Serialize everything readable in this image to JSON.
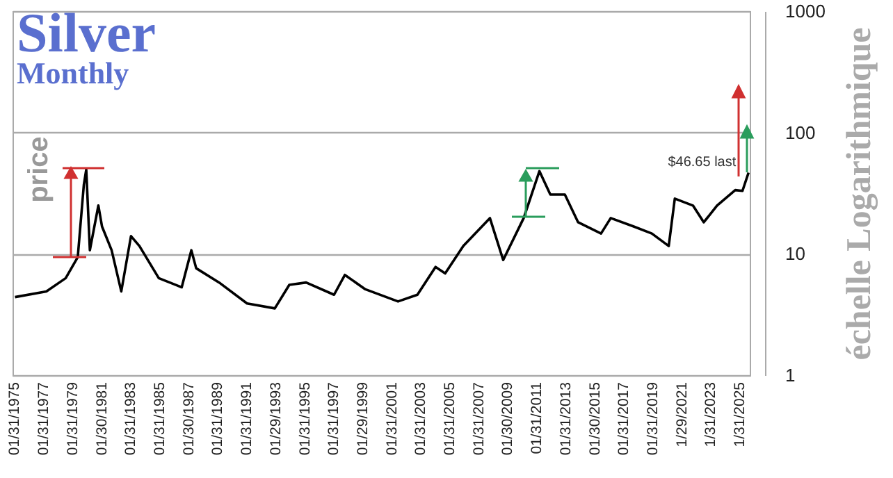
{
  "chart_data": {
    "type": "line",
    "title": "Silver",
    "subtitle": "Monthly",
    "ylabel": "échelle Logarithmique",
    "log": true,
    "grid": "y",
    "ylim": [
      1,
      1000
    ],
    "yticks": [
      1,
      10,
      100,
      1000
    ],
    "xlim": [
      "1974-12",
      "2025-10"
    ],
    "xticks": [
      {
        "value": "1975-01-31",
        "label": "01/31/1975"
      },
      {
        "value": "1977-01-31",
        "label": "01/31/1977"
      },
      {
        "value": "1979-01-31",
        "label": "01/31/1979"
      },
      {
        "value": "1981-01-30",
        "label": "01/30/1981"
      },
      {
        "value": "1983-01-31",
        "label": "01/31/1983"
      },
      {
        "value": "1985-01-31",
        "label": "01/31/1985"
      },
      {
        "value": "1987-01-30",
        "label": "01/30/1987"
      },
      {
        "value": "1989-01-31",
        "label": "01/31/1989"
      },
      {
        "value": "1991-01-31",
        "label": "01/31/1991"
      },
      {
        "value": "1993-01-29",
        "label": "01/29/1993"
      },
      {
        "value": "1995-01-31",
        "label": "01/31/1995"
      },
      {
        "value": "1997-01-31",
        "label": "01/31/1997"
      },
      {
        "value": "1999-01-29",
        "label": "01/29/1999"
      },
      {
        "value": "2001-01-31",
        "label": "01/31/2001"
      },
      {
        "value": "2003-01-31",
        "label": "01/31/2003"
      },
      {
        "value": "2005-01-31",
        "label": "01/31/2005"
      },
      {
        "value": "2007-01-31",
        "label": "01/31/2007"
      },
      {
        "value": "2009-01-30",
        "label": "01/30/2009"
      },
      {
        "value": "2011-01-31",
        "label": "01/31/2011"
      },
      {
        "value": "2013-01-31",
        "label": "01/31/2013"
      },
      {
        "value": "2015-01-30",
        "label": "01/30/2015"
      },
      {
        "value": "2017-01-31",
        "label": "01/31/2017"
      },
      {
        "value": "2019-01-31",
        "label": "01/31/2019"
      },
      {
        "value": "2021-01-29",
        "label": "1/29/2021"
      },
      {
        "value": "2023-01-31",
        "label": "1/31/2023"
      },
      {
        "value": "2025-01-31",
        "label": "1/31/2025"
      }
    ],
    "x": [
      "1975-02",
      "1977-04",
      "1978-08",
      "1979-06",
      "1979-11",
      "1980-01",
      "1980-04",
      "1980-11",
      "1981-02",
      "1981-10",
      "1982-06",
      "1983-02",
      "1983-09",
      "1985-01",
      "1986-08",
      "1987-04",
      "1987-08",
      "1989-03",
      "1991-02",
      "1993-01",
      "1994-01",
      "1995-03",
      "1997-02",
      "1997-11",
      "1999-04",
      "2001-07",
      "2002-11",
      "2004-02",
      "2004-10",
      "2006-01",
      "2007-11",
      "2008-10",
      "2010-03",
      "2011-04",
      "2012-01",
      "2013-01",
      "2013-12",
      "2015-07",
      "2016-03",
      "2017-10",
      "2019-01",
      "2020-03",
      "2020-08",
      "2021-11",
      "2022-08",
      "2023-07",
      "2024-10",
      "2025-04",
      "2025-09"
    ],
    "series": [
      {
        "color": "#000000",
        "values": [
          4.4,
          4.9,
          6.3,
          9.4,
          37,
          49.5,
          10.7,
          25,
          16.8,
          10.7,
          4.9,
          14,
          11.6,
          6.3,
          5.3,
          10.7,
          7.6,
          5.8,
          3.9,
          3.55,
          5.55,
          5.8,
          4.6,
          6.7,
          5.1,
          4.05,
          4.6,
          7.8,
          6.9,
          11.6,
          19.7,
          8.9,
          19.7,
          48,
          30.8,
          30.8,
          18.2,
          14.7,
          19.7,
          16.8,
          14.7,
          11.6,
          28.5,
          25,
          18.2,
          25,
          33.5,
          33,
          46.65
        ]
      }
    ],
    "annotations": [
      {
        "text": "price",
        "x": "1980-01",
        "y": 49.5
      },
      {
        "text": "$46.65 last",
        "x": "2025-09",
        "y": 46.65
      }
    ]
  }
}
